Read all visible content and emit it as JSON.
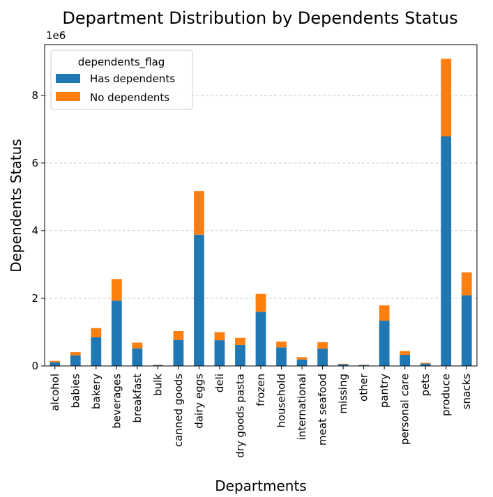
{
  "chart_data": {
    "type": "bar",
    "stacked": true,
    "title": "Department Distribution by Dependents Status",
    "xlabel": "Departments",
    "ylabel": "Dependents Status",
    "y_offset_label": "1e6",
    "ylim": [
      0,
      9500000
    ],
    "yticks": [
      0,
      2000000,
      4000000,
      6000000,
      8000000
    ],
    "ytick_labels": [
      "0",
      "2",
      "4",
      "6",
      "8"
    ],
    "grid": "y-dashed",
    "legend_title": "dependents_flag",
    "legend_position": "upper-left",
    "categories": [
      "alcohol",
      "babies",
      "bakery",
      "beverages",
      "breakfast",
      "bulk",
      "canned goods",
      "dairy eggs",
      "deli",
      "dry goods pasta",
      "frozen",
      "household",
      "international",
      "meat seafood",
      "missing",
      "other",
      "pantry",
      "personal care",
      "pets",
      "produce",
      "snacks"
    ],
    "series": [
      {
        "name": "Has dependents",
        "color": "#1f77b4",
        "values": [
          110000,
          310000,
          850000,
          1930000,
          520000,
          25000,
          770000,
          3880000,
          760000,
          620000,
          1600000,
          550000,
          190000,
          510000,
          50000,
          27000,
          1340000,
          330000,
          70000,
          6790000,
          2090000
        ]
      },
      {
        "name": "No dependents",
        "color": "#ff7f0e",
        "values": [
          40000,
          100000,
          270000,
          640000,
          170000,
          10000,
          260000,
          1290000,
          240000,
          210000,
          530000,
          170000,
          70000,
          190000,
          16000,
          9000,
          450000,
          110000,
          23000,
          2290000,
          680000
        ]
      }
    ]
  }
}
